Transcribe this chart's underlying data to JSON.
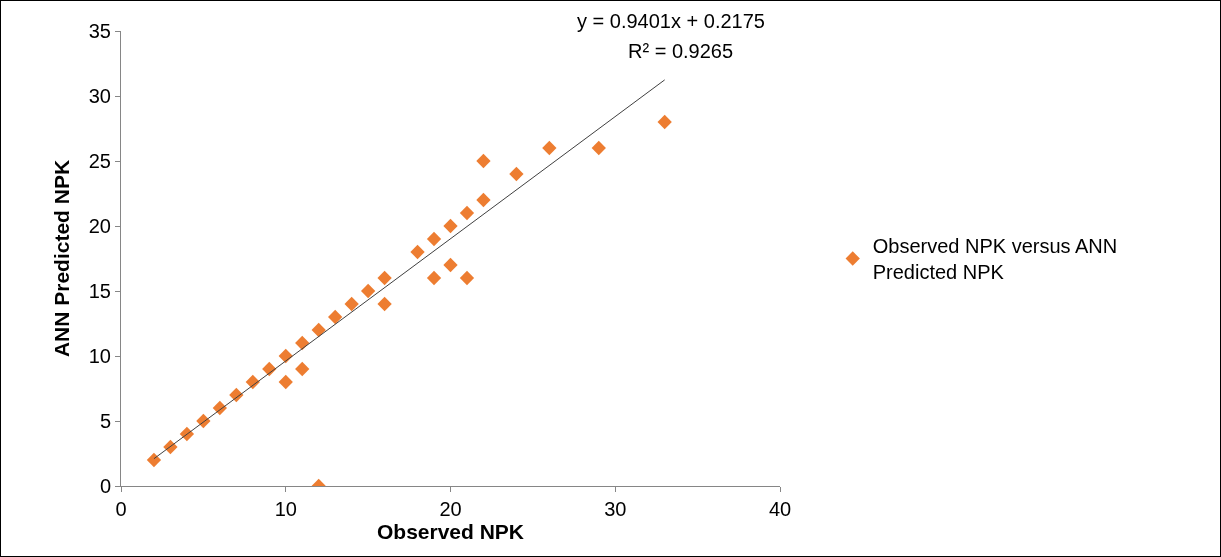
{
  "chart_data": {
    "type": "scatter",
    "xlabel": "Observed NPK",
    "ylabel": "ANN Predicted NPK",
    "annotations": [
      "y = 0.9401x + 0.2175",
      "R² = 0.9265"
    ],
    "series": [
      {
        "name": "Observed NPK versus ANN Predicted NPK",
        "color": "#ed7d31",
        "marker": "diamond",
        "x": [
          2,
          3,
          4,
          5,
          6,
          7,
          8,
          9,
          10,
          10,
          11,
          11,
          12,
          12,
          13,
          14,
          15,
          16,
          16,
          18,
          19,
          19,
          20,
          20,
          21,
          21,
          22,
          22,
          24,
          26,
          29,
          33
        ],
        "values": [
          2,
          3,
          4,
          5,
          6,
          7,
          8,
          9,
          10,
          8,
          11,
          9,
          12,
          0,
          13,
          14,
          15,
          16,
          14,
          18,
          19,
          16,
          20,
          17,
          21,
          16,
          25,
          22,
          24,
          26,
          26,
          28
        ]
      },
      {
        "type": "line",
        "color": "#404040",
        "x": [
          2,
          33
        ],
        "values": [
          2.098,
          31.24
        ]
      }
    ],
    "xlim": [
      0,
      40
    ],
    "xticks": [
      0,
      10,
      20,
      30,
      40
    ],
    "ylim": [
      0,
      35
    ],
    "yticks": [
      0,
      5,
      10,
      15,
      20,
      25,
      30,
      35
    ],
    "grid": false,
    "legend": "right"
  }
}
